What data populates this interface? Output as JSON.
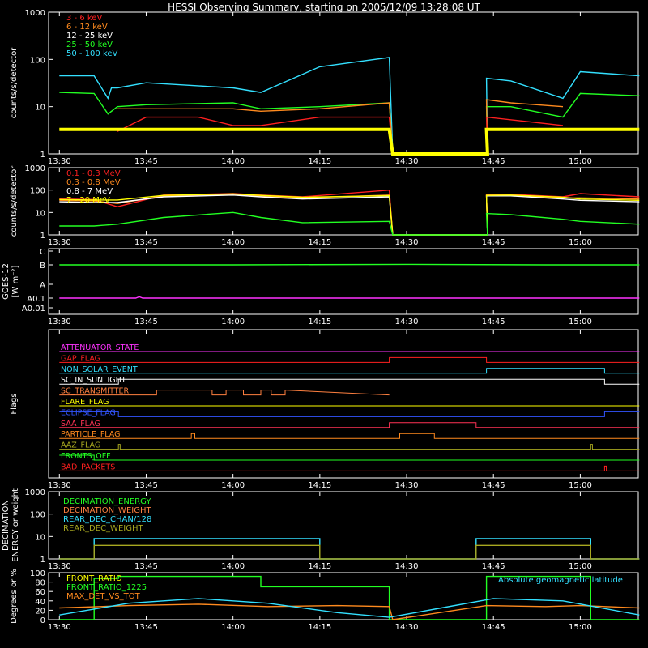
{
  "title": "HESSI Observing Summary, starting on 2005/12/09 13:28:08 UT",
  "colors": {
    "white": "#ffffff",
    "red": "#ff2020",
    "orange": "#ff8a1e",
    "yellow": "#ffff00",
    "green": "#22ff22",
    "cyan": "#33e0ff",
    "magenta": "#ff33ff",
    "blue": "#3355ff",
    "gold": "#d8c800",
    "olive": "#a8a820",
    "pink": "#ff3355",
    "salmon": "#ff8040"
  },
  "chart_data": [
    {
      "id": "p1",
      "type": "line",
      "ylabel": "counts/s/detector",
      "yscale": "log",
      "ylim": [
        1,
        1000
      ],
      "yticks": [
        "1",
        "10",
        "100",
        "1000"
      ],
      "legend": [
        {
          "text": "3 - 6 keV",
          "color": "red"
        },
        {
          "text": "6 - 12 keV",
          "color": "orange"
        },
        {
          "text": "12 - 25 keV",
          "color": "white"
        },
        {
          "text": "25 - 50 keV",
          "color": "green"
        },
        {
          "text": "50 - 100 keV",
          "color": "cyan"
        }
      ],
      "series": [
        {
          "color": "cyan",
          "x": [
            13.5,
            13.6,
            13.64,
            13.65,
            13.667,
            13.75,
            14.0,
            14.08,
            14.25,
            14.45,
            14.46,
            14.733,
            14.73,
            14.8,
            14.95,
            15.0,
            15.17
          ],
          "y": [
            45,
            45,
            15,
            25,
            25,
            32,
            25,
            20,
            70,
            110,
            1,
            1,
            40,
            35,
            15,
            55,
            45
          ]
        },
        {
          "color": "green",
          "x": [
            13.5,
            13.6,
            13.64,
            13.667,
            13.75,
            14.0,
            14.08,
            14.25,
            14.45,
            14.46,
            14.733,
            14.73,
            14.8,
            14.95,
            15.0,
            15.17
          ],
          "y": [
            20,
            19,
            7,
            10,
            11,
            12,
            9,
            10,
            12,
            1,
            1,
            10,
            10,
            6,
            19,
            17
          ]
        },
        {
          "color": "orange",
          "x": [
            13.667,
            13.75,
            14.0,
            14.08,
            14.25,
            14.45,
            14.46,
            14.733,
            14.73,
            14.8,
            14.95
          ],
          "y": [
            9,
            9,
            9,
            8,
            9,
            12,
            1,
            1,
            14,
            12,
            10
          ]
        },
        {
          "color": "red",
          "x": [
            13.667,
            13.75,
            13.9,
            14.0,
            14.08,
            14.25,
            14.45,
            14.46,
            14.733,
            14.73,
            14.95
          ],
          "y": [
            3,
            6,
            6,
            4,
            4,
            6,
            6,
            1,
            1,
            6,
            4
          ]
        },
        {
          "color": "yellow",
          "x": [
            13.5,
            13.6,
            13.667,
            14.0,
            14.08,
            14.45,
            14.46,
            14.733,
            14.73,
            14.95,
            15.0,
            15.17
          ],
          "y": [
            3.3,
            3.3,
            3.3,
            3.3,
            3.3,
            3.3,
            1,
            1,
            3.3,
            3.3,
            3.3,
            3.3
          ]
        }
      ]
    },
    {
      "id": "p2",
      "type": "line",
      "ylabel": "counts/s/detector",
      "yscale": "log",
      "ylim": [
        1,
        1000
      ],
      "yticks": [
        "1",
        "10",
        "100",
        "1000"
      ],
      "legend": [
        {
          "text": "0.1 - 0.3 MeV",
          "color": "red"
        },
        {
          "text": "0.3 - 0.8 MeV",
          "color": "orange"
        },
        {
          "text": "0.8 - 7 MeV",
          "color": "white"
        },
        {
          "text": "7 - 20 MeV",
          "color": "yellow"
        }
      ],
      "series": [
        {
          "color": "red",
          "x": [
            13.5,
            13.6,
            13.667,
            13.8,
            14.0,
            14.08,
            14.2,
            14.45,
            14.46,
            14.733,
            14.73,
            14.8,
            14.95,
            15.0,
            15.17
          ],
          "y": [
            40,
            38,
            18,
            60,
            70,
            60,
            50,
            100,
            1,
            1,
            60,
            65,
            50,
            70,
            50
          ]
        },
        {
          "color": "orange",
          "x": [
            13.5,
            13.6,
            13.667,
            13.8,
            14.0,
            14.08,
            14.2,
            14.45,
            14.46,
            14.733,
            14.73,
            14.8,
            14.95,
            15.0,
            15.17
          ],
          "y": [
            35,
            33,
            25,
            55,
            65,
            55,
            45,
            60,
            1,
            1,
            60,
            60,
            45,
            45,
            40
          ]
        },
        {
          "color": "white",
          "x": [
            13.5,
            13.6,
            13.667,
            13.8,
            14.0,
            14.08,
            14.2,
            14.45,
            14.46,
            14.733,
            14.73,
            14.8,
            14.95,
            15.0,
            15.17
          ],
          "y": [
            30,
            28,
            28,
            50,
            60,
            50,
            40,
            50,
            1,
            1,
            55,
            55,
            40,
            35,
            30
          ]
        },
        {
          "color": "yellow",
          "x": [
            13.5,
            13.6,
            13.667,
            13.8,
            14.0,
            14.08,
            14.2,
            14.45,
            14.46,
            14.733,
            14.73,
            14.8,
            14.95,
            15.0,
            15.17
          ],
          "y": [
            38,
            36,
            36,
            58,
            68,
            58,
            48,
            56,
            1,
            1,
            58,
            60,
            48,
            40,
            35
          ]
        },
        {
          "color": "green",
          "x": [
            13.5,
            13.6,
            13.667,
            13.8,
            14.0,
            14.08,
            14.2,
            14.45,
            14.46,
            14.733,
            14.73,
            14.8,
            14.95,
            15.0,
            15.17
          ],
          "y": [
            2.5,
            2.5,
            3,
            6,
            10,
            6,
            3.5,
            4,
            1,
            1,
            9,
            8,
            5,
            4,
            3
          ]
        }
      ]
    },
    {
      "id": "p3",
      "type": "line",
      "ylabel": "GOES-12",
      "ylabel2": "[W m⁻²]",
      "yscale": "log",
      "ylim": [
        0.01,
        1000
      ],
      "yticks": [
        "A0.01",
        "A0.1",
        "A",
        "B",
        "C"
      ],
      "series": [
        {
          "color": "green",
          "x": [
            13.5,
            14.0,
            14.5,
            14.9,
            15.17
          ],
          "y": [
            100,
            100,
            110,
            100,
            100
          ]
        },
        {
          "color": "magenta",
          "x": [
            13.5,
            13.72,
            13.73,
            13.74,
            15.17
          ],
          "y": [
            0.1,
            0.1,
            0.13,
            0.1,
            0.1
          ]
        }
      ]
    },
    {
      "id": "p4",
      "type": "line",
      "ylabel": "Flags",
      "flags": [
        {
          "name": "ATTENUATOR_STATE",
          "color": "magenta",
          "x": [
            13.5,
            15.17
          ],
          "y": [
            0,
            0
          ]
        },
        {
          "name": "GAP_FLAG",
          "color": "red",
          "x": [
            13.5,
            14.45,
            14.45,
            14.73,
            14.73,
            15.17
          ],
          "y": [
            0,
            0,
            1,
            1,
            0,
            0
          ]
        },
        {
          "name": "NON_SOLAR_EVENT",
          "color": "cyan",
          "x": [
            13.5,
            14.73,
            14.73,
            15.07,
            15.07,
            15.17
          ],
          "y": [
            0,
            0,
            1,
            1,
            0,
            0
          ]
        },
        {
          "name": "SC_IN_SUNLIGHT",
          "color": "white",
          "x": [
            13.5,
            13.67,
            13.67,
            15.07,
            15.07,
            15.17
          ],
          "y": [
            0,
            0,
            1,
            1,
            0,
            0
          ]
        },
        {
          "name": "SC_TRANSMITTER",
          "color": "salmon",
          "x": [
            13.5,
            13.78,
            13.78,
            13.94,
            13.94,
            13.98,
            13.98,
            14.03,
            14.03,
            14.08,
            14.08,
            14.11,
            14.11,
            14.15,
            14.15,
            14.45
          ],
          "y": [
            0,
            0,
            1,
            1,
            0,
            0,
            1,
            1,
            0,
            0,
            1,
            1,
            0,
            0,
            1,
            0
          ]
        },
        {
          "name": "FLARE_FLAG",
          "color": "yellow",
          "x": [
            13.5,
            15.17
          ],
          "y": [
            0,
            0
          ]
        },
        {
          "name": "ECLIPSE_FLAG",
          "color": "blue",
          "x": [
            13.5,
            13.67,
            13.67,
            15.07,
            15.07,
            15.17
          ],
          "y": [
            1,
            1,
            0,
            0,
            1,
            1
          ]
        },
        {
          "name": "SAA_FLAG",
          "color": "pink",
          "x": [
            13.5,
            14.45,
            14.45,
            14.7,
            14.7,
            15.17
          ],
          "y": [
            0,
            0,
            1,
            1,
            0,
            0
          ]
        },
        {
          "name": "PARTICLE_FLAG",
          "color": "orange",
          "x": [
            13.5,
            13.88,
            13.88,
            13.89,
            13.89,
            14.48,
            14.48,
            14.58,
            14.58,
            15.17
          ],
          "y": [
            0,
            0,
            1,
            1,
            0,
            0,
            1,
            1,
            0,
            0
          ]
        },
        {
          "name": "AAZ_FLAG",
          "color": "olive",
          "x": [
            13.5,
            13.67,
            13.67,
            13.675,
            13.675,
            15.03,
            15.03,
            15.035,
            15.035,
            15.17
          ],
          "y": [
            0,
            0,
            1,
            1,
            0,
            0,
            1,
            1,
            0,
            0
          ]
        },
        {
          "name": "FRONTS_OFF",
          "color": "green",
          "x": [
            13.5,
            13.6,
            13.6,
            15.17
          ],
          "y": [
            1,
            1,
            0,
            0
          ]
        },
        {
          "name": "BAD_PACKETS",
          "color": "red",
          "x": [
            13.5,
            15.07,
            15.07,
            15.075,
            15.075,
            15.17
          ],
          "y": [
            0,
            0,
            1,
            1,
            0,
            0
          ]
        }
      ]
    },
    {
      "id": "p5",
      "type": "line",
      "ylabel": "DECIMATION",
      "ylabel2": "ENERGY or weight",
      "yscale": "log",
      "ylim": [
        1,
        1000
      ],
      "yticks": [
        "1",
        "10",
        "100",
        "1000"
      ],
      "legend": [
        {
          "text": "DECIMATION_ENERGY",
          "color": "green"
        },
        {
          "text": "DECIMATION_WEIGHT",
          "color": "salmon"
        },
        {
          "text": "REAR_DEC_CHAN/128",
          "color": "cyan"
        },
        {
          "text": "REAR_DEC_WEIGHT",
          "color": "olive"
        }
      ],
      "series": [
        {
          "color": "cyan",
          "x": [
            13.5,
            13.6,
            13.6,
            14.25,
            14.25,
            14.7,
            14.7,
            15.03,
            15.03,
            15.17
          ],
          "y": [
            1,
            1,
            8,
            8,
            1,
            1,
            8,
            8,
            1,
            1
          ]
        },
        {
          "color": "olive",
          "x": [
            13.5,
            13.6,
            13.6,
            14.25,
            14.25,
            14.7,
            14.7,
            15.03,
            15.03,
            15.17
          ],
          "y": [
            1,
            1,
            4,
            4,
            1,
            1,
            4,
            4,
            1,
            1
          ]
        }
      ]
    },
    {
      "id": "p6",
      "type": "line",
      "ylabel": "Degrees or %",
      "ylim": [
        0,
        100
      ],
      "yticks": [
        "0",
        "20",
        "40",
        "60",
        "80",
        "100"
      ],
      "legend": [
        {
          "text": "FRONT_RATIO",
          "color": "yellow"
        },
        {
          "text": "FRONT_RATIO_1225",
          "color": "green"
        },
        {
          "text": "MAX_DET_VS_TOT",
          "color": "orange"
        }
      ],
      "annotation": {
        "text": "Absolute geomagnetic latitude",
        "color": "cyan"
      },
      "series": [
        {
          "color": "green",
          "x": [
            13.5,
            13.6,
            13.6,
            13.67,
            13.67,
            14.08,
            14.08,
            14.45,
            14.45,
            14.73,
            14.73,
            15.03,
            15.03,
            15.17
          ],
          "y": [
            0,
            0,
            88,
            88,
            92,
            92,
            70,
            70,
            0,
            0,
            92,
            92,
            0,
            0
          ]
        },
        {
          "color": "orange",
          "x": [
            13.5,
            13.7,
            13.9,
            14.1,
            14.3,
            14.45,
            14.46,
            14.73,
            14.9,
            15.0,
            15.17
          ],
          "y": [
            25,
            30,
            33,
            28,
            30,
            28,
            0,
            30,
            28,
            30,
            25
          ]
        },
        {
          "color": "cyan",
          "x": [
            13.5,
            13.7,
            13.9,
            14.1,
            14.3,
            14.45,
            14.6,
            14.75,
            14.95,
            15.17
          ],
          "y": [
            10,
            35,
            45,
            35,
            15,
            5,
            25,
            45,
            40,
            10
          ]
        }
      ]
    }
  ],
  "xaxis": {
    "range": [
      "13:28:08",
      "15:10:00"
    ],
    "ticks": [
      {
        "label": "13:30",
        "h": 13.5
      },
      {
        "label": "13:45",
        "h": 13.75
      },
      {
        "label": "14:00",
        "h": 14.0
      },
      {
        "label": "14:15",
        "h": 14.25
      },
      {
        "label": "14:30",
        "h": 14.5
      },
      {
        "label": "14:45",
        "h": 14.75
      },
      {
        "label": "15:00",
        "h": 15.0
      }
    ]
  }
}
